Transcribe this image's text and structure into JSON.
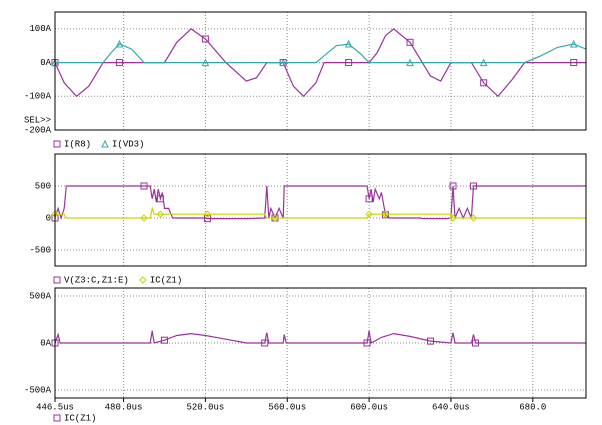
{
  "chart_data": [
    {
      "type": "line",
      "grid": true,
      "selection_label": "SEL>>",
      "ylim": [
        -200,
        150
      ],
      "yticks": [
        {
          "value": 100,
          "label": "100A"
        },
        {
          "value": 0,
          "label": "0A"
        },
        {
          "value": -100,
          "label": "-100A"
        },
        {
          "value": -200,
          "label": "-200A"
        }
      ],
      "x": [
        446.5,
        451,
        457,
        463,
        470,
        474,
        478,
        484,
        490,
        500,
        506,
        513,
        520,
        530,
        540,
        545,
        550,
        555,
        558,
        563,
        568,
        574,
        578,
        584,
        590,
        596,
        600,
        604,
        608,
        612,
        620,
        630,
        635,
        640,
        645,
        650,
        656,
        663,
        670,
        676,
        684,
        692,
        700,
        706
      ],
      "series": [
        {
          "name": "I(R8)",
          "color": "#993399",
          "marker": "square",
          "values": [
            0,
            -60,
            -100,
            -70,
            0,
            0,
            0,
            0,
            0,
            0,
            60,
            100,
            70,
            0,
            -55,
            -45,
            0,
            0,
            0,
            -70,
            -100,
            -60,
            0,
            0,
            0,
            0,
            0,
            30,
            80,
            100,
            60,
            -40,
            -55,
            0,
            0,
            0,
            -60,
            -100,
            -50,
            0,
            0,
            0,
            0,
            0
          ]
        },
        {
          "name": "I(VD3)",
          "color": "#33aaaa",
          "marker": "triangle",
          "values": [
            0,
            0,
            0,
            0,
            0,
            30,
            55,
            40,
            0,
            0,
            0,
            0,
            0,
            0,
            0,
            0,
            0,
            0,
            0,
            0,
            0,
            0,
            20,
            50,
            55,
            25,
            0,
            0,
            0,
            0,
            0,
            0,
            0,
            0,
            0,
            0,
            0,
            0,
            0,
            0,
            20,
            45,
            55,
            40
          ]
        }
      ]
    },
    {
      "type": "line",
      "grid": true,
      "ylim": [
        -750,
        1000
      ],
      "yticks": [
        500,
        0,
        -500
      ],
      "x": [
        446.5,
        448,
        449.5,
        451,
        452,
        470,
        490,
        493,
        494,
        495,
        496,
        497,
        498,
        499,
        500,
        502,
        504,
        520,
        521,
        540,
        549,
        550,
        551,
        552,
        554,
        556,
        558,
        558.5,
        580,
        599,
        600,
        601,
        602,
        603,
        605,
        606,
        608,
        610,
        625,
        626,
        638,
        640,
        641,
        642,
        644,
        646,
        648,
        650,
        651,
        680,
        706
      ],
      "series": [
        {
          "name": "V(Z3:C,Z1:E)",
          "color": "#993399",
          "marker": "square",
          "values": [
            0,
            150,
            0,
            150,
            500,
            500,
            500,
            500,
            300,
            450,
            250,
            450,
            300,
            400,
            150,
            150,
            0,
            0,
            -10,
            -10,
            0,
            500,
            0,
            150,
            0,
            150,
            0,
            500,
            500,
            500,
            300,
            450,
            250,
            450,
            300,
            400,
            50,
            0,
            0,
            -10,
            -10,
            0,
            500,
            0,
            150,
            0,
            150,
            0,
            500,
            500,
            500
          ]
        },
        {
          "name": "IC(Z1)",
          "color": "#c8d400",
          "marker": "diamond",
          "values": [
            60,
            60,
            60,
            60,
            0,
            0,
            0,
            0,
            150,
            60,
            60,
            60,
            60,
            60,
            60,
            60,
            60,
            60,
            60,
            60,
            60,
            0,
            0,
            0,
            0,
            0,
            0,
            0,
            0,
            0,
            60,
            60,
            60,
            60,
            60,
            60,
            60,
            60,
            60,
            60,
            60,
            60,
            0,
            0,
            0,
            0,
            0,
            0,
            0,
            0,
            0
          ]
        }
      ]
    },
    {
      "type": "line",
      "grid": true,
      "ylim": [
        -585,
        585
      ],
      "yticks": [
        {
          "value": 500,
          "label": "500A"
        },
        {
          "value": 0,
          "label": "0A"
        },
        {
          "value": -500,
          "label": "-500A"
        }
      ],
      "xlim": [
        446.5,
        706
      ],
      "xticks": [
        {
          "value": 446.5,
          "label": "446.5us"
        },
        {
          "value": 480,
          "label": "480.0us"
        },
        {
          "value": 520,
          "label": "520.0us"
        },
        {
          "value": 560,
          "label": "560.0us"
        },
        {
          "value": 600,
          "label": "600.0us"
        },
        {
          "value": 640,
          "label": "640.0us"
        },
        {
          "value": 680,
          "label": "680.0"
        }
      ],
      "x": [
        446.5,
        448,
        449,
        493,
        494,
        495,
        500,
        506,
        513,
        520,
        530,
        540,
        549,
        550,
        551,
        558,
        558.5,
        559.5,
        599,
        600,
        601,
        606,
        612,
        620,
        630,
        640,
        641,
        642,
        650,
        651,
        652,
        706
      ],
      "series": [
        {
          "name": "IC(Z1)",
          "color": "#993399",
          "marker": "square",
          "values": [
            0,
            90,
            0,
            0,
            130,
            0,
            30,
            80,
            100,
            80,
            40,
            0,
            0,
            110,
            0,
            0,
            90,
            0,
            0,
            130,
            0,
            60,
            100,
            70,
            20,
            0,
            110,
            0,
            0,
            90,
            0,
            0
          ]
        }
      ]
    }
  ]
}
